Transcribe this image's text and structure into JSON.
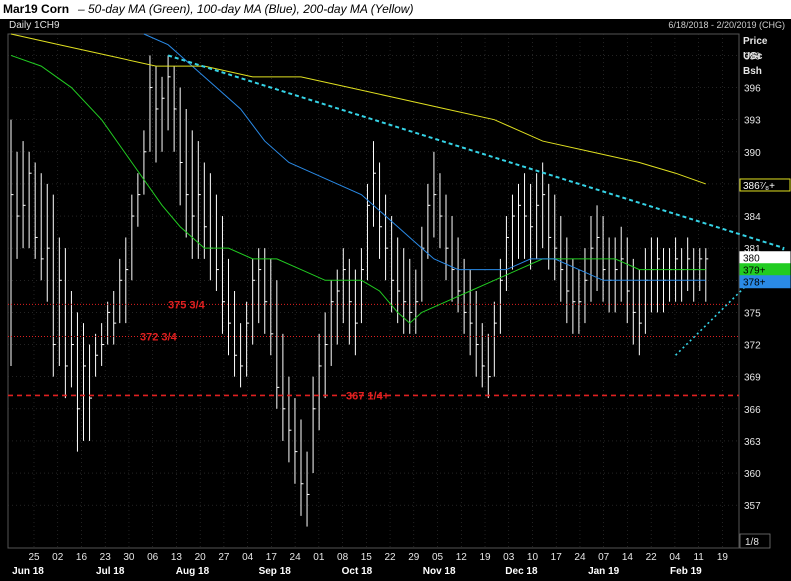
{
  "header": {
    "title": "Mar19 Corn",
    "subtitle": "– 50-day MA (Green), 100-day MA (Blue), 200-day MA (Yellow)",
    "symbol": "Daily 1CH9",
    "range": "6/18/2018 - 2/20/2019 (CHG)"
  },
  "colors": {
    "background": "#000000",
    "grid": "#3a3a3a",
    "bars": "#ffffff",
    "ma50": "#22cc22",
    "ma100": "#2a8ae6",
    "ma200": "#e0e020",
    "trendline": "#35d3e6",
    "support": "#e02020",
    "last_box": "#ffffff",
    "ma50_box": "#22cc22",
    "ma100_box": "#2a8ae6",
    "ma200_box": "#e0e020"
  },
  "chart_data": {
    "type": "ohlc",
    "title": "Mar19 Corn",
    "ylabel": "Price USc Bsh",
    "ylim": [
      353,
      401
    ],
    "y_ticks": [
      357,
      360,
      363,
      366,
      369,
      372,
      375,
      378,
      381,
      384,
      387,
      390,
      393,
      396,
      399
    ],
    "y_tick_labels": [
      "357",
      "360",
      "363",
      "366",
      "369",
      "372",
      "375",
      "378",
      "381",
      "384",
      "387",
      "390",
      "393",
      "396",
      "399"
    ],
    "x_day_labels": [
      "25",
      "02",
      "16",
      "23",
      "30",
      "06",
      "13",
      "20",
      "27",
      "04",
      "17",
      "24",
      "01",
      "08",
      "15",
      "22",
      "29",
      "05",
      "12",
      "19",
      "03",
      "10",
      "17",
      "24",
      "07",
      "14",
      "22",
      "04",
      "11",
      "19"
    ],
    "x_month_labels": [
      "Jun 18",
      "Jul 18",
      "Aug 18",
      "Sep 18",
      "Oct 18",
      "Nov 18",
      "Dec 18",
      "Jan 19",
      "Feb 19"
    ],
    "price_labels": {
      "last": "380",
      "ma200": "386⁷⁄₈+",
      "ma50": "379+",
      "ma100": "378+",
      "fraction_unit": "1/8"
    },
    "support_levels": [
      {
        "label": "375 3/4",
        "value": 375.75,
        "style": "dotted"
      },
      {
        "label": "372 3/4",
        "value": 372.75,
        "style": "dotted"
      },
      {
        "label": "367 1/4+",
        "value": 367.25,
        "style": "dashed"
      }
    ],
    "trendlines": [
      {
        "from": {
          "x": 26,
          "y": 399
        },
        "to": {
          "x": 128,
          "y": 381
        }
      },
      {
        "from": {
          "x": 110,
          "y": 371
        },
        "to": {
          "x": 128,
          "y": 381
        }
      }
    ],
    "ohlc": [
      {
        "x": 0,
        "h": 393.0,
        "l": 370.0,
        "c": 386.0
      },
      {
        "x": 1,
        "h": 390.0,
        "l": 380.0,
        "c": 384.0
      },
      {
        "x": 2,
        "h": 391.0,
        "l": 381.0,
        "c": 385.0
      },
      {
        "x": 3,
        "h": 390.0,
        "l": 381.0,
        "c": 388.0
      },
      {
        "x": 4,
        "h": 389.0,
        "l": 380.0,
        "c": 382.0
      },
      {
        "x": 5,
        "h": 388.0,
        "l": 378.0,
        "c": 380.0
      },
      {
        "x": 6,
        "h": 387.0,
        "l": 376.0,
        "c": 381.0
      },
      {
        "x": 7,
        "h": 386.0,
        "l": 369.0,
        "c": 372.0
      },
      {
        "x": 8,
        "h": 382.0,
        "l": 370.0,
        "c": 378.0
      },
      {
        "x": 9,
        "h": 381.0,
        "l": 367.0,
        "c": 370.0
      },
      {
        "x": 10,
        "h": 377.0,
        "l": 368.0,
        "c": 372.0
      },
      {
        "x": 11,
        "h": 375.0,
        "l": 362.0,
        "c": 366.0
      },
      {
        "x": 12,
        "h": 374.0,
        "l": 363.0,
        "c": 370.0
      },
      {
        "x": 13,
        "h": 372.0,
        "l": 363.0,
        "c": 367.0
      },
      {
        "x": 14,
        "h": 373.0,
        "l": 369.0,
        "c": 371.0
      },
      {
        "x": 15,
        "h": 374.0,
        "l": 370.0,
        "c": 372.0
      },
      {
        "x": 16,
        "h": 376.0,
        "l": 372.0,
        "c": 375.0
      },
      {
        "x": 17,
        "h": 377.0,
        "l": 372.0,
        "c": 374.0
      },
      {
        "x": 18,
        "h": 380.0,
        "l": 374.0,
        "c": 378.0
      },
      {
        "x": 19,
        "h": 382.0,
        "l": 374.0,
        "c": 379.0
      },
      {
        "x": 20,
        "h": 386.0,
        "l": 378.0,
        "c": 384.0
      },
      {
        "x": 21,
        "h": 388.0,
        "l": 383.0,
        "c": 386.0
      },
      {
        "x": 22,
        "h": 392.0,
        "l": 386.0,
        "c": 390.0
      },
      {
        "x": 23,
        "h": 399.0,
        "l": 390.0,
        "c": 396.0
      },
      {
        "x": 24,
        "h": 398.0,
        "l": 389.0,
        "c": 394.0
      },
      {
        "x": 25,
        "h": 397.0,
        "l": 390.0,
        "c": 395.0
      },
      {
        "x": 26,
        "h": 399.0,
        "l": 392.0,
        "c": 397.0
      },
      {
        "x": 27,
        "h": 398.0,
        "l": 390.0,
        "c": 394.0
      },
      {
        "x": 28,
        "h": 396.0,
        "l": 385.0,
        "c": 389.0
      },
      {
        "x": 29,
        "h": 394.0,
        "l": 382.0,
        "c": 386.0
      },
      {
        "x": 30,
        "h": 392.0,
        "l": 380.0,
        "c": 384.0
      },
      {
        "x": 31,
        "h": 391.0,
        "l": 380.0,
        "c": 386.0
      },
      {
        "x": 32,
        "h": 389.0,
        "l": 380.0,
        "c": 383.0
      },
      {
        "x": 33,
        "h": 388.0,
        "l": 378.0,
        "c": 381.0
      },
      {
        "x": 34,
        "h": 386.0,
        "l": 377.0,
        "c": 379.0
      },
      {
        "x": 35,
        "h": 384.0,
        "l": 373.0,
        "c": 376.0
      },
      {
        "x": 36,
        "h": 380.0,
        "l": 371.0,
        "c": 374.0
      },
      {
        "x": 37,
        "h": 377.0,
        "l": 369.0,
        "c": 371.0
      },
      {
        "x": 38,
        "h": 374.0,
        "l": 368.0,
        "c": 370.0
      },
      {
        "x": 39,
        "h": 376.0,
        "l": 369.0,
        "c": 374.0
      },
      {
        "x": 40,
        "h": 380.0,
        "l": 372.0,
        "c": 378.0
      },
      {
        "x": 41,
        "h": 381.0,
        "l": 374.0,
        "c": 379.0
      },
      {
        "x": 42,
        "h": 381.0,
        "l": 373.0,
        "c": 376.0
      },
      {
        "x": 43,
        "h": 380.0,
        "l": 371.0,
        "c": 373.0
      },
      {
        "x": 44,
        "h": 378.0,
        "l": 366.0,
        "c": 368.0
      },
      {
        "x": 45,
        "h": 373.0,
        "l": 363.0,
        "c": 366.0
      },
      {
        "x": 46,
        "h": 369.0,
        "l": 361.0,
        "c": 364.0
      },
      {
        "x": 47,
        "h": 367.0,
        "l": 359.0,
        "c": 362.0
      },
      {
        "x": 48,
        "h": 365.0,
        "l": 356.0,
        "c": 359.0
      },
      {
        "x": 49,
        "h": 362.0,
        "l": 355.0,
        "c": 358.0
      },
      {
        "x": 50,
        "h": 369.0,
        "l": 360.0,
        "c": 366.0
      },
      {
        "x": 51,
        "h": 373.0,
        "l": 364.0,
        "c": 370.0
      },
      {
        "x": 52,
        "h": 375.0,
        "l": 367.0,
        "c": 372.0
      },
      {
        "x": 53,
        "h": 378.0,
        "l": 370.0,
        "c": 376.0
      },
      {
        "x": 54,
        "h": 379.0,
        "l": 372.0,
        "c": 377.0
      },
      {
        "x": 55,
        "h": 381.0,
        "l": 374.0,
        "c": 379.0
      },
      {
        "x": 56,
        "h": 380.0,
        "l": 372.0,
        "c": 376.0
      },
      {
        "x": 57,
        "h": 379.0,
        "l": 371.0,
        "c": 374.0
      },
      {
        "x": 58,
        "h": 381.0,
        "l": 374.0,
        "c": 379.0
      },
      {
        "x": 59,
        "h": 387.0,
        "l": 378.0,
        "c": 385.0
      },
      {
        "x": 60,
        "h": 391.0,
        "l": 383.0,
        "c": 388.0
      },
      {
        "x": 61,
        "h": 389.0,
        "l": 380.0,
        "c": 383.0
      },
      {
        "x": 62,
        "h": 386.0,
        "l": 378.0,
        "c": 381.0
      },
      {
        "x": 63,
        "h": 384.0,
        "l": 375.0,
        "c": 378.0
      },
      {
        "x": 64,
        "h": 382.0,
        "l": 374.0,
        "c": 377.0
      },
      {
        "x": 65,
        "h": 381.0,
        "l": 373.0,
        "c": 376.0
      },
      {
        "x": 66,
        "h": 380.0,
        "l": 373.0,
        "c": 375.0
      },
      {
        "x": 67,
        "h": 379.0,
        "l": 373.0,
        "c": 376.0
      },
      {
        "x": 68,
        "h": 383.0,
        "l": 376.0,
        "c": 381.0
      },
      {
        "x": 69,
        "h": 387.0,
        "l": 380.0,
        "c": 385.0
      },
      {
        "x": 70,
        "h": 390.0,
        "l": 382.0,
        "c": 386.0
      },
      {
        "x": 71,
        "h": 388.0,
        "l": 381.0,
        "c": 384.0
      },
      {
        "x": 72,
        "h": 386.0,
        "l": 378.0,
        "c": 381.0
      },
      {
        "x": 73,
        "h": 384.0,
        "l": 376.0,
        "c": 379.0
      },
      {
        "x": 74,
        "h": 382.0,
        "l": 375.0,
        "c": 377.0
      },
      {
        "x": 75,
        "h": 380.0,
        "l": 373.0,
        "c": 375.0
      },
      {
        "x": 76,
        "h": 379.0,
        "l": 371.0,
        "c": 374.0
      },
      {
        "x": 77,
        "h": 377.0,
        "l": 369.0,
        "c": 372.0
      },
      {
        "x": 78,
        "h": 374.0,
        "l": 368.0,
        "c": 370.0
      },
      {
        "x": 79,
        "h": 373.0,
        "l": 367.0,
        "c": 369.0
      },
      {
        "x": 80,
        "h": 376.0,
        "l": 369.0,
        "c": 374.0
      },
      {
        "x": 81,
        "h": 380.0,
        "l": 373.0,
        "c": 378.0
      },
      {
        "x": 82,
        "h": 384.0,
        "l": 377.0,
        "c": 382.0
      },
      {
        "x": 83,
        "h": 386.0,
        "l": 379.0,
        "c": 384.0
      },
      {
        "x": 84,
        "h": 387.0,
        "l": 380.0,
        "c": 385.0
      },
      {
        "x": 85,
        "h": 388.0,
        "l": 380.0,
        "c": 384.0
      },
      {
        "x": 86,
        "h": 387.0,
        "l": 379.0,
        "c": 383.0
      },
      {
        "x": 87,
        "h": 388.0,
        "l": 380.0,
        "c": 385.0
      },
      {
        "x": 88,
        "h": 389.0,
        "l": 381.0,
        "c": 386.0
      },
      {
        "x": 89,
        "h": 387.0,
        "l": 379.0,
        "c": 382.0
      },
      {
        "x": 90,
        "h": 386.0,
        "l": 378.0,
        "c": 381.0
      },
      {
        "x": 91,
        "h": 384.0,
        "l": 376.0,
        "c": 379.0
      },
      {
        "x": 92,
        "h": 382.0,
        "l": 374.0,
        "c": 377.0
      },
      {
        "x": 93,
        "h": 380.0,
        "l": 373.0,
        "c": 376.0
      },
      {
        "x": 94,
        "h": 379.0,
        "l": 373.0,
        "c": 376.0
      },
      {
        "x": 95,
        "h": 381.0,
        "l": 374.0,
        "c": 378.0
      },
      {
        "x": 96,
        "h": 384.0,
        "l": 376.0,
        "c": 381.0
      },
      {
        "x": 97,
        "h": 385.0,
        "l": 377.0,
        "c": 382.0
      },
      {
        "x": 98,
        "h": 384.0,
        "l": 376.0,
        "c": 379.0
      },
      {
        "x": 99,
        "h": 382.0,
        "l": 375.0,
        "c": 378.0
      },
      {
        "x": 100,
        "h": 382.0,
        "l": 375.0,
        "c": 379.0
      },
      {
        "x": 101,
        "h": 383.0,
        "l": 376.0,
        "c": 380.0
      },
      {
        "x": 102,
        "h": 382.0,
        "l": 374.0,
        "c": 377.0
      },
      {
        "x": 103,
        "h": 380.0,
        "l": 372.0,
        "c": 375.0
      },
      {
        "x": 104,
        "h": 379.0,
        "l": 371.0,
        "c": 374.0
      },
      {
        "x": 105,
        "h": 381.0,
        "l": 373.0,
        "c": 378.0
      },
      {
        "x": 106,
        "h": 382.0,
        "l": 375.0,
        "c": 379.0
      },
      {
        "x": 107,
        "h": 382.0,
        "l": 375.0,
        "c": 380.0
      },
      {
        "x": 108,
        "h": 381.0,
        "l": 375.0,
        "c": 378.0
      },
      {
        "x": 109,
        "h": 381.0,
        "l": 376.0,
        "c": 379.0
      },
      {
        "x": 110,
        "h": 382.0,
        "l": 376.0,
        "c": 380.0
      },
      {
        "x": 111,
        "h": 381.0,
        "l": 376.0,
        "c": 379.0
      },
      {
        "x": 112,
        "h": 382.0,
        "l": 377.0,
        "c": 380.0
      },
      {
        "x": 113,
        "h": 381.0,
        "l": 376.0,
        "c": 379.0
      },
      {
        "x": 114,
        "h": 381.0,
        "l": 377.0,
        "c": 380.0
      },
      {
        "x": 115,
        "h": 381.0,
        "l": 376.0,
        "c": 380.0
      }
    ],
    "series": [
      {
        "name": "50-day MA",
        "color": "#22cc22",
        "x": [
          0,
          5,
          10,
          15,
          20,
          25,
          28,
          32,
          36,
          40,
          44,
          48,
          52,
          56,
          58,
          61,
          64,
          66,
          68,
          72,
          76,
          80,
          84,
          88,
          92,
          96,
          100,
          104,
          108,
          112,
          115
        ],
        "y": [
          399,
          398,
          396,
          393,
          389,
          385,
          383,
          381,
          381,
          380,
          380,
          379,
          378,
          378,
          378,
          377,
          375,
          374,
          375,
          376,
          377,
          378,
          379,
          380,
          380,
          380,
          380,
          379,
          379,
          379,
          379
        ]
      },
      {
        "name": "100-day MA",
        "color": "#2a8ae6",
        "x": [
          22,
          26,
          30,
          34,
          38,
          42,
          46,
          50,
          54,
          58,
          62,
          66,
          70,
          74,
          78,
          82,
          86,
          90,
          94,
          98,
          102,
          106,
          110,
          115
        ],
        "y": [
          401,
          400,
          398,
          396,
          394,
          391,
          389,
          388,
          387,
          386,
          384,
          382,
          380,
          379,
          379,
          379,
          380,
          380,
          379,
          378,
          378,
          378,
          378,
          378
        ]
      },
      {
        "name": "200-day MA",
        "color": "#e0e020",
        "x": [
          0,
          8,
          16,
          24,
          32,
          40,
          48,
          56,
          64,
          72,
          80,
          88,
          96,
          104,
          110,
          115
        ],
        "y": [
          401,
          400,
          399,
          398,
          398,
          397,
          397,
          396,
          395,
          394,
          393,
          391,
          390,
          389,
          388,
          387
        ]
      }
    ]
  }
}
